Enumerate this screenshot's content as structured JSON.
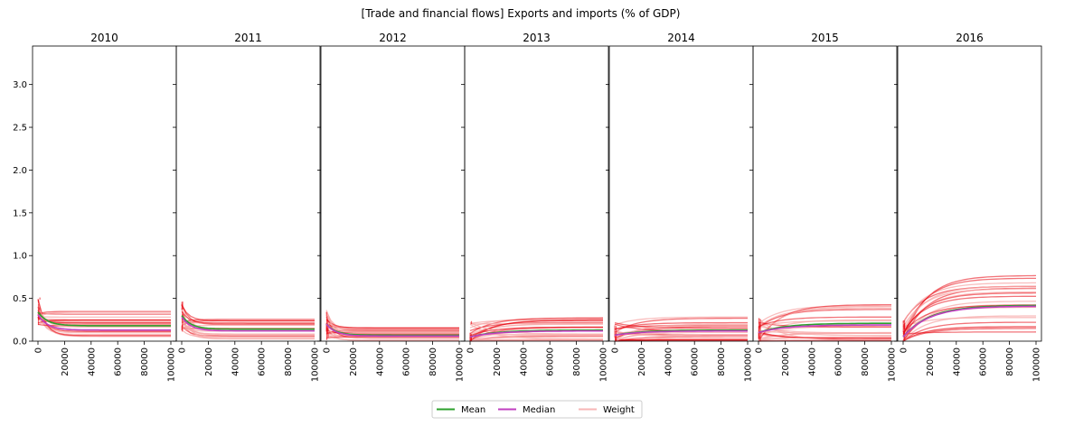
{
  "chart_data": {
    "type": "line",
    "title": "[Trade and financial flows] Exports and imports (% of GDP)",
    "panels": [
      {
        "title": "2010",
        "mean": 0.18,
        "median": 0.13,
        "mean_start": 0.34,
        "median_start": 0.31
      },
      {
        "title": "2011",
        "mean": 0.14,
        "median": 0.12,
        "mean_start": 0.3,
        "median_start": 0.28
      },
      {
        "title": "2012",
        "mean": 0.07,
        "median": 0.06,
        "mean_start": 0.2,
        "median_start": 0.2
      },
      {
        "title": "2013",
        "mean": 0.13,
        "median": 0.12,
        "mean_start": 0.05,
        "median_start": 0.05
      },
      {
        "title": "2014",
        "mean": 0.13,
        "median": 0.12,
        "mean_start": 0.07,
        "median_start": 0.07
      },
      {
        "title": "2015",
        "mean": 0.21,
        "median": 0.19,
        "mean_start": 0.1,
        "median_start": 0.1
      },
      {
        "title": "2016",
        "mean": 0.42,
        "median": 0.41,
        "mean_start": 0.05,
        "median_start": 0.05
      }
    ],
    "x_ticks": [
      "0",
      "20000",
      "40000",
      "60000",
      "80000",
      "100000"
    ],
    "y_ticks": [
      "0.0",
      "0.5",
      "1.0",
      "1.5",
      "2.0",
      "2.5",
      "3.0"
    ],
    "xlim": [
      0,
      100000
    ],
    "ylim": [
      0,
      3.45
    ],
    "legend": {
      "placement": "bottom-center",
      "items": [
        {
          "label": "Mean",
          "color": "#2ca02c"
        },
        {
          "label": "Median",
          "color": "#c03fc0"
        },
        {
          "label": "Weight",
          "color": "#f7b6b6"
        }
      ]
    },
    "colors": {
      "mean": "#2ca02c",
      "median": "#c03fc0",
      "weight": "#f7a8a8",
      "weight_strong": "#e8000b"
    }
  }
}
